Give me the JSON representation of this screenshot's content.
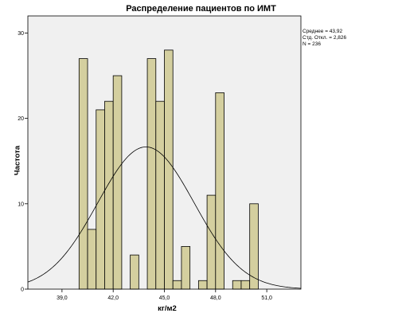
{
  "chart_data": {
    "type": "bar",
    "title": "Распределение пациентов по ИМТ",
    "xlabel": "кг/м2",
    "ylabel": "Частота",
    "xlim": [
      37.0,
      53.0
    ],
    "ylim": [
      0,
      32
    ],
    "x_ticks": [
      39.0,
      42.0,
      45.0,
      48.0,
      51.0
    ],
    "x_tick_labels": [
      "39,0",
      "42,0",
      "45,0",
      "48,0",
      "51,0"
    ],
    "y_ticks": [
      0,
      10,
      20,
      30
    ],
    "bin_width": 0.5,
    "bins": [
      {
        "x0": 40.0,
        "value": 27
      },
      {
        "x0": 40.5,
        "value": 7
      },
      {
        "x0": 41.0,
        "value": 21
      },
      {
        "x0": 41.5,
        "value": 22
      },
      {
        "x0": 42.0,
        "value": 25
      },
      {
        "x0": 43.0,
        "value": 4
      },
      {
        "x0": 44.0,
        "value": 27
      },
      {
        "x0": 44.5,
        "value": 22
      },
      {
        "x0": 45.0,
        "value": 28
      },
      {
        "x0": 45.5,
        "value": 1
      },
      {
        "x0": 46.0,
        "value": 5
      },
      {
        "x0": 47.0,
        "value": 1
      },
      {
        "x0": 47.5,
        "value": 11
      },
      {
        "x0": 48.0,
        "value": 23
      },
      {
        "x0": 49.0,
        "value": 1
      },
      {
        "x0": 49.5,
        "value": 1
      },
      {
        "x0": 50.0,
        "value": 10
      }
    ],
    "normal_curve": {
      "mean": 43.92,
      "sd": 2.826,
      "n": 236
    },
    "stats_text": [
      "Среднее = 43,92",
      "Стд. Откл. = 2,826",
      "N = 236"
    ],
    "colors": {
      "bar": "#d4cf9f",
      "plot_bg": "#f0f0f0",
      "curve": "#000000"
    }
  }
}
